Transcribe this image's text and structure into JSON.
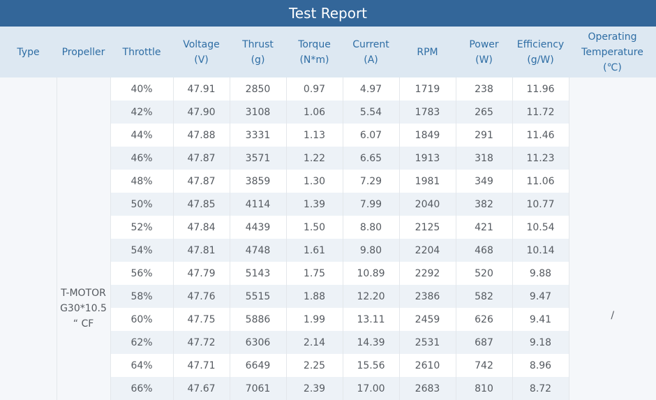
{
  "title": "Test Report",
  "headers": [
    {
      "lines": [
        "Type"
      ]
    },
    {
      "lines": [
        "Propeller"
      ]
    },
    {
      "lines": [
        "Throttle"
      ]
    },
    {
      "lines": [
        "Voltage",
        "(V)"
      ]
    },
    {
      "lines": [
        "Thrust",
        "(g)"
      ]
    },
    {
      "lines": [
        "Torque",
        "(N*m)"
      ]
    },
    {
      "lines": [
        "Current",
        "(A)"
      ]
    },
    {
      "lines": [
        "RPM"
      ]
    },
    {
      "lines": [
        "Power",
        "(W)"
      ]
    },
    {
      "lines": [
        "Efficiency",
        "(g/W)"
      ]
    },
    {
      "lines": [
        "Operating",
        "Temperature",
        "(℃)"
      ]
    }
  ],
  "type": "",
  "propeller": [
    "T-MOTOR",
    "G30*10.5",
    "“ CF"
  ],
  "temperature": "/",
  "rows": [
    [
      "40%",
      "47.91",
      "2850",
      "0.97",
      "4.97",
      "1719",
      "238",
      "11.96"
    ],
    [
      "42%",
      "47.90",
      "3108",
      "1.06",
      "5.54",
      "1783",
      "265",
      "11.72"
    ],
    [
      "44%",
      "47.88",
      "3331",
      "1.13",
      "6.07",
      "1849",
      "291",
      "11.46"
    ],
    [
      "46%",
      "47.87",
      "3571",
      "1.22",
      "6.65",
      "1913",
      "318",
      "11.23"
    ],
    [
      "48%",
      "47.87",
      "3859",
      "1.30",
      "7.29",
      "1981",
      "349",
      "11.06"
    ],
    [
      "50%",
      "47.85",
      "4114",
      "1.39",
      "7.99",
      "2040",
      "382",
      "10.77"
    ],
    [
      "52%",
      "47.84",
      "4439",
      "1.50",
      "8.80",
      "2125",
      "421",
      "10.54"
    ],
    [
      "54%",
      "47.81",
      "4748",
      "1.61",
      "9.80",
      "2204",
      "468",
      "10.14"
    ],
    [
      "56%",
      "47.79",
      "5143",
      "1.75",
      "10.89",
      "2292",
      "520",
      "9.88"
    ],
    [
      "58%",
      "47.76",
      "5515",
      "1.88",
      "12.20",
      "2386",
      "582",
      "9.47"
    ],
    [
      "60%",
      "47.75",
      "5886",
      "1.99",
      "13.11",
      "2459",
      "626",
      "9.41"
    ],
    [
      "62%",
      "47.72",
      "6306",
      "2.14",
      "14.39",
      "2531",
      "687",
      "9.18"
    ],
    [
      "64%",
      "47.71",
      "6649",
      "2.25",
      "15.56",
      "2610",
      "742",
      "8.96"
    ],
    [
      "66%",
      "47.67",
      "7061",
      "2.39",
      "17.00",
      "2683",
      "810",
      "8.72"
    ]
  ]
}
